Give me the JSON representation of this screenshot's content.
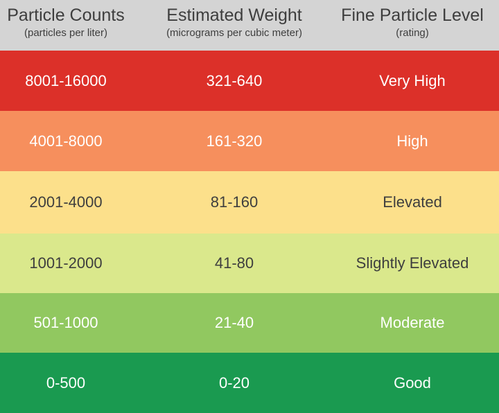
{
  "header": {
    "particle_counts": {
      "title": "Particle Counts",
      "subtitle": "(particles per liter)"
    },
    "estimated_weight": {
      "title": "Estimated Weight",
      "subtitle": "(micrograms per cubic meter)"
    },
    "fine_particle_level": {
      "title": "Fine Particle Level",
      "subtitle": "(rating)"
    }
  },
  "rows": [
    {
      "counts": "8001-16000",
      "weight": "321-640",
      "level": "Very High",
      "color": "#dc3029"
    },
    {
      "counts": "4001-8000",
      "weight": "161-320",
      "level": "High",
      "color": "#f68f5d"
    },
    {
      "counts": "2001-4000",
      "weight": "81-160",
      "level": "Elevated",
      "color": "#fce08b"
    },
    {
      "counts": "1001-2000",
      "weight": "41-80",
      "level": "Slightly Elevated",
      "color": "#dae88c"
    },
    {
      "counts": "501-1000",
      "weight": "21-40",
      "level": "Moderate",
      "color": "#91c860"
    },
    {
      "counts": "0-500",
      "weight": "0-20",
      "level": "Good",
      "color": "#1a9a50"
    }
  ]
}
